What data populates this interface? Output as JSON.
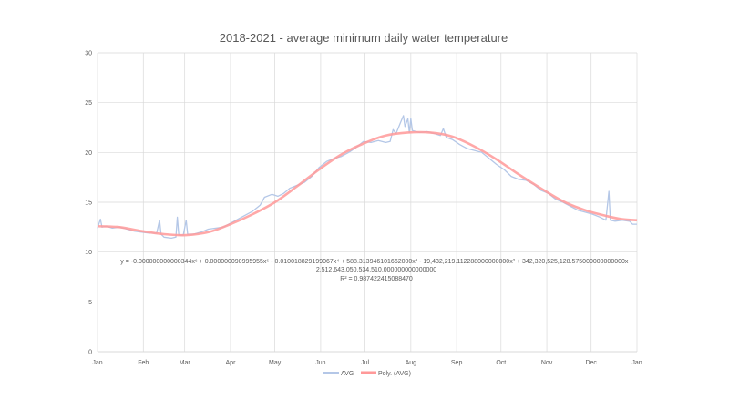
{
  "chart_data": {
    "type": "line",
    "title": "2018-2021 - average minimum daily water temperature",
    "xlabel": "",
    "ylabel": "",
    "ylim": [
      0,
      30
    ],
    "yticks": [
      0,
      5,
      10,
      15,
      20,
      25,
      30
    ],
    "xlim_days": [
      0,
      365
    ],
    "xticks": [
      {
        "label": "Jan",
        "day": 0
      },
      {
        "label": "Feb",
        "day": 31
      },
      {
        "label": "Mar",
        "day": 59
      },
      {
        "label": "Apr",
        "day": 90
      },
      {
        "label": "May",
        "day": 120
      },
      {
        "label": "Jun",
        "day": 151
      },
      {
        "label": "Jul",
        "day": 181
      },
      {
        "label": "Aug",
        "day": 212
      },
      {
        "label": "Sep",
        "day": 243
      },
      {
        "label": "Oct",
        "day": 273
      },
      {
        "label": "Nov",
        "day": 304
      },
      {
        "label": "Dec",
        "day": 334
      },
      {
        "label": "Jan",
        "day": 365
      }
    ],
    "grid": true,
    "legend_position": "bottom",
    "series": [
      {
        "name": "AVG",
        "color": "#b4c7e7",
        "points": [
          [
            0,
            12.4
          ],
          [
            2,
            13.3
          ],
          [
            3,
            12.5
          ],
          [
            6,
            12.6
          ],
          [
            10,
            12.4
          ],
          [
            15,
            12.5
          ],
          [
            20,
            12.3
          ],
          [
            25,
            12.1
          ],
          [
            30,
            12.0
          ],
          [
            35,
            11.9
          ],
          [
            40,
            11.9
          ],
          [
            42,
            13.2
          ],
          [
            43,
            11.8
          ],
          [
            45,
            11.5
          ],
          [
            50,
            11.4
          ],
          [
            53,
            11.5
          ],
          [
            54,
            13.5
          ],
          [
            55,
            11.7
          ],
          [
            58,
            11.7
          ],
          [
            60,
            13.2
          ],
          [
            61,
            11.8
          ],
          [
            65,
            11.8
          ],
          [
            70,
            12.0
          ],
          [
            75,
            12.3
          ],
          [
            80,
            12.4
          ],
          [
            85,
            12.5
          ],
          [
            90,
            12.9
          ],
          [
            95,
            13.3
          ],
          [
            100,
            13.7
          ],
          [
            105,
            14.1
          ],
          [
            110,
            14.7
          ],
          [
            113,
            15.5
          ],
          [
            118,
            15.8
          ],
          [
            122,
            15.6
          ],
          [
            126,
            15.9
          ],
          [
            130,
            16.4
          ],
          [
            135,
            16.7
          ],
          [
            140,
            17.0
          ],
          [
            145,
            17.6
          ],
          [
            150,
            18.5
          ],
          [
            155,
            19.1
          ],
          [
            160,
            19.4
          ],
          [
            165,
            19.6
          ],
          [
            170,
            20.0
          ],
          [
            175,
            20.5
          ],
          [
            180,
            21.1
          ],
          [
            185,
            21.0
          ],
          [
            190,
            21.2
          ],
          [
            195,
            21.0
          ],
          [
            198,
            21.1
          ],
          [
            200,
            22.3
          ],
          [
            202,
            21.9
          ],
          [
            205,
            23.0
          ],
          [
            207,
            23.7
          ],
          [
            208,
            22.6
          ],
          [
            210,
            23.4
          ],
          [
            211,
            22.0
          ],
          [
            212,
            23.4
          ],
          [
            213,
            22.2
          ],
          [
            218,
            22.0
          ],
          [
            223,
            22.1
          ],
          [
            228,
            21.9
          ],
          [
            232,
            21.7
          ],
          [
            234,
            22.4
          ],
          [
            236,
            21.5
          ],
          [
            240,
            21.3
          ],
          [
            245,
            20.8
          ],
          [
            250,
            20.4
          ],
          [
            255,
            20.2
          ],
          [
            260,
            20.0
          ],
          [
            265,
            19.4
          ],
          [
            270,
            18.8
          ],
          [
            275,
            18.3
          ],
          [
            280,
            17.6
          ],
          [
            285,
            17.3
          ],
          [
            290,
            17.2
          ],
          [
            295,
            16.8
          ],
          [
            300,
            16.2
          ],
          [
            305,
            15.9
          ],
          [
            310,
            15.3
          ],
          [
            315,
            15.0
          ],
          [
            320,
            14.6
          ],
          [
            325,
            14.2
          ],
          [
            330,
            14.0
          ],
          [
            335,
            13.8
          ],
          [
            340,
            13.5
          ],
          [
            344,
            13.2
          ],
          [
            346,
            16.1
          ],
          [
            347,
            13.2
          ],
          [
            350,
            13.1
          ],
          [
            355,
            13.2
          ],
          [
            360,
            13.1
          ],
          [
            362,
            12.8
          ],
          [
            365,
            12.8
          ]
        ]
      },
      {
        "name": "Poly. (AVG)",
        "color": "#ff9999",
        "points": [
          [
            0,
            12.6
          ],
          [
            15,
            12.5
          ],
          [
            30,
            12.1
          ],
          [
            45,
            11.8
          ],
          [
            60,
            11.7
          ],
          [
            75,
            12.0
          ],
          [
            90,
            12.8
          ],
          [
            105,
            13.8
          ],
          [
            120,
            15.0
          ],
          [
            135,
            16.6
          ],
          [
            150,
            18.3
          ],
          [
            165,
            19.8
          ],
          [
            180,
            20.9
          ],
          [
            195,
            21.7
          ],
          [
            210,
            22.0
          ],
          [
            225,
            22.0
          ],
          [
            240,
            21.6
          ],
          [
            255,
            20.6
          ],
          [
            270,
            19.3
          ],
          [
            285,
            17.8
          ],
          [
            300,
            16.4
          ],
          [
            315,
            15.1
          ],
          [
            330,
            14.2
          ],
          [
            345,
            13.6
          ],
          [
            355,
            13.3
          ],
          [
            365,
            13.2
          ]
        ]
      }
    ],
    "trendline_equation": "y = -0.000000000000344x⁶ + 0.000000090995955x⁵ - 0.010018829199067x⁴ + 588.313946101662000x³ - 19,432,219.112288000000000x² + 342,320,525,128.575000000000000x -",
    "trendline_equation_line2": "2,512,643,050,534,510.000000000000000",
    "r_squared": "R² = 0.987422415088470"
  }
}
